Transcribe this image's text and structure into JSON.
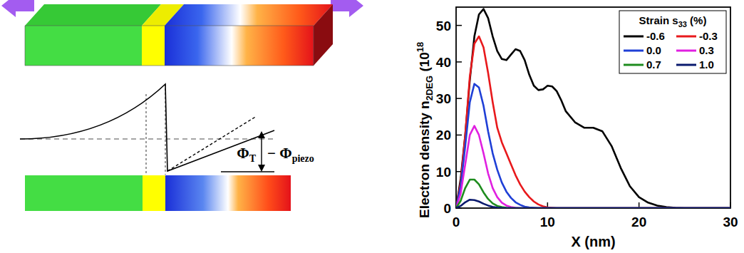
{
  "chart_data": {
    "type": "line",
    "x_label": "X (nm)",
    "y_label": {
      "text": "Electron density n",
      "sub": "2DEG",
      "tail": " (10",
      "sup": "18"
    },
    "legend_title": {
      "text": "Strain s",
      "sub": "33",
      "tail": " (%)"
    },
    "legend": "upper right",
    "grid": false,
    "xlim": [
      0,
      30
    ],
    "xticks": [
      0,
      10,
      20,
      30
    ],
    "ylim": [
      0,
      55
    ],
    "yticks": [
      0,
      10,
      20,
      30,
      40,
      50
    ],
    "x": [
      0,
      0.5,
      1,
      1.5,
      2,
      2.5,
      3,
      3.5,
      4,
      4.5,
      5,
      5.5,
      6,
      6.5,
      7,
      7.5,
      8,
      8.5,
      9,
      9.5,
      10,
      10.5,
      11,
      11.5,
      12,
      13,
      14,
      15,
      16,
      17,
      18,
      19,
      20,
      21,
      22,
      23,
      24,
      25,
      26,
      28,
      30
    ],
    "series": [
      {
        "name": "-0.6",
        "color": "#000000",
        "values": [
          0,
          8,
          20,
          35,
          47,
          53,
          54.5,
          52,
          47,
          43,
          40.8,
          40.5,
          42,
          43.5,
          43,
          40.5,
          36.5,
          33.5,
          32.3,
          32.5,
          33.5,
          33.3,
          32,
          29.5,
          26.5,
          23.5,
          22,
          22,
          21,
          17,
          11,
          6,
          3,
          1.5,
          0.7,
          0.3,
          0.1,
          0,
          0,
          0,
          0
        ]
      },
      {
        "name": "-0.3",
        "color": "#e8191c",
        "values": [
          0,
          7,
          20,
          36,
          45,
          47,
          44,
          37,
          29,
          22,
          18,
          15,
          12,
          9,
          6.5,
          4.5,
          3,
          1.8,
          1,
          0.5,
          0.2,
          0.1,
          0,
          0,
          0,
          0,
          0,
          0,
          0,
          0,
          0,
          0,
          0,
          0,
          0,
          0,
          0,
          0,
          0,
          0,
          0
        ]
      },
      {
        "name": "0.0",
        "color": "#1f3fd6",
        "values": [
          0,
          6,
          17,
          29,
          34,
          33,
          28,
          21,
          15,
          10.5,
          7,
          4.5,
          2.8,
          1.6,
          0.9,
          0.4,
          0.2,
          0.1,
          0,
          0,
          0,
          0,
          0,
          0,
          0,
          0,
          0,
          0,
          0,
          0,
          0,
          0,
          0,
          0,
          0,
          0,
          0,
          0,
          0,
          0,
          0
        ]
      },
      {
        "name": "0.3",
        "color": "#e020e0",
        "values": [
          0,
          4,
          12,
          20,
          22.5,
          20,
          15,
          9.5,
          5.5,
          3,
          1.5,
          0.7,
          0.3,
          0.1,
          0,
          0,
          0,
          0,
          0,
          0,
          0,
          0,
          0,
          0,
          0,
          0,
          0,
          0,
          0,
          0,
          0,
          0,
          0,
          0,
          0,
          0,
          0,
          0,
          0,
          0,
          0
        ]
      },
      {
        "name": "0.7",
        "color": "#1e8c1e",
        "values": [
          0,
          2,
          5.5,
          7.8,
          7.8,
          6.5,
          4.3,
          2.5,
          1.3,
          0.6,
          0.3,
          0.1,
          0,
          0,
          0,
          0,
          0,
          0,
          0,
          0,
          0,
          0,
          0,
          0,
          0,
          0,
          0,
          0,
          0,
          0,
          0,
          0,
          0,
          0,
          0,
          0,
          0,
          0,
          0,
          0,
          0
        ]
      },
      {
        "name": "1.0",
        "color": "#0a1a6e",
        "values": [
          0,
          0.6,
          1.6,
          2.3,
          2.2,
          1.8,
          1.2,
          0.7,
          0.35,
          0.15,
          0.05,
          0,
          0,
          0,
          0,
          0,
          0,
          0,
          0,
          0,
          0,
          0,
          0,
          0,
          0,
          0,
          0,
          0,
          0,
          0,
          0,
          0,
          0,
          0,
          0,
          0,
          0,
          0,
          0,
          0,
          0
        ]
      }
    ]
  },
  "diagram": {
    "annotation": [
      {
        "text": "Φ",
        "sub": "T"
      },
      {
        "text": "− Φ",
        "sub": "piezo"
      }
    ]
  }
}
